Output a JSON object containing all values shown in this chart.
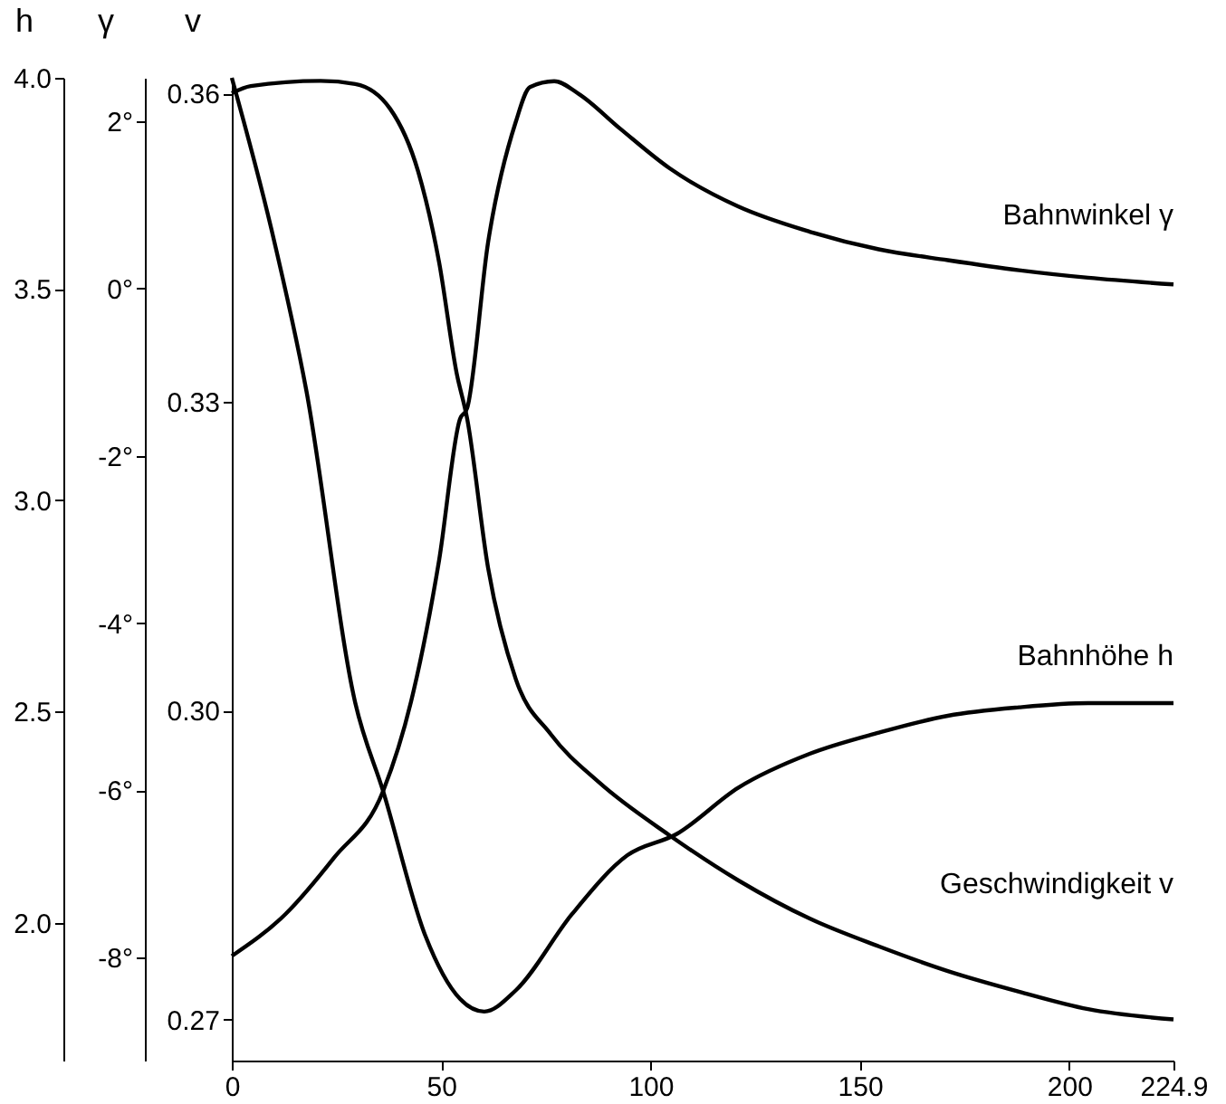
{
  "chart_data": {
    "type": "line",
    "xlim": [
      0,
      224.9
    ],
    "xticks": [
      0,
      50,
      100,
      150,
      200,
      {
        "value": 224.9,
        "label": "224.9"
      }
    ],
    "ylabel": "v",
    "ylim": [
      0.266,
      0.3615
    ],
    "yticks": [
      {
        "value": 0.27,
        "label": "0.27"
      },
      {
        "value": 0.3,
        "label": "0.30"
      },
      {
        "value": 0.33,
        "label": "0.33"
      },
      {
        "value": 0.36,
        "label": "0.36"
      }
    ],
    "y2label": "γ",
    "y2lim": [
      -9.23,
      2.52
    ],
    "y2ticks": [
      {
        "value": 2,
        "label": "2°"
      },
      {
        "value": 0,
        "label": "0°"
      },
      {
        "value": -2,
        "label": "-2°"
      },
      {
        "value": -4,
        "label": "-4°"
      },
      {
        "value": -6,
        "label": "-6°"
      },
      {
        "value": -8,
        "label": "-8°"
      }
    ],
    "y3label": "h",
    "y3lim": [
      1.674,
      4.0
    ],
    "y3ticks": [
      {
        "value": 4,
        "label": "4.0"
      },
      {
        "value": 3.5,
        "label": "3.5"
      },
      {
        "value": 3,
        "label": "3.0"
      },
      {
        "value": 2.5,
        "label": "2.5"
      },
      {
        "value": 2,
        "label": "2.0"
      }
    ],
    "grid": false,
    "marker": "none",
    "line_style": "solid",
    "series": [
      {
        "name": "Bahnwinkel γ",
        "axis": "y2",
        "color": "#000000",
        "x": [
          0,
          12.8,
          24.5,
          36.2,
          42.8,
          49.5,
          54.5,
          56.2,
          61.2,
          67.8,
          71.2,
          77,
          82.8,
          92.8,
          104.5,
          121,
          138,
          154.5,
          171,
          188,
          204.5,
          224.9
        ],
        "values": [
          -7.98,
          -7.48,
          -6.8,
          -6.0,
          -4.94,
          -3.25,
          -1.56,
          -1.43,
          0.55,
          1.99,
          2.41,
          2.48,
          2.33,
          1.91,
          1.44,
          0.98,
          0.68,
          0.47,
          0.34,
          0.22,
          0.13,
          0.05
        ]
      },
      {
        "name": "Bahnhöhe h",
        "axis": "y3",
        "color": "#000000",
        "x": [
          0,
          9.5,
          17.8,
          29.5,
          36.2,
          46.2,
          54.5,
          60.3,
          67.8,
          81.2,
          94.5,
          106.2,
          121,
          138,
          154.5,
          171,
          188,
          204.5,
          224.9
        ],
        "values": [
          4.0,
          3.64,
          3.26,
          2.52,
          2.31,
          1.97,
          1.82,
          1.79,
          1.84,
          2.02,
          2.16,
          2.21,
          2.32,
          2.4,
          2.45,
          2.49,
          2.51,
          2.52,
          2.52
        ]
      },
      {
        "name": "Geschwindigkeit v",
        "axis": "y",
        "color": "#000000",
        "x": [
          0,
          4.5,
          21.2,
          29.5,
          37.8,
          44.5,
          49.5,
          53.7,
          56.2,
          61.2,
          67.8,
          76.2,
          87.8,
          104.5,
          121,
          138,
          154.5,
          171,
          188,
          204.5,
          224.9
        ],
        "values": [
          0.36,
          0.3607,
          0.3612,
          0.3609,
          0.3585,
          0.3524,
          0.3436,
          0.3328,
          0.3284,
          0.3139,
          0.3031,
          0.2977,
          0.293,
          0.2879,
          0.2835,
          0.2798,
          0.2771,
          0.2747,
          0.2727,
          0.271,
          0.27
        ]
      }
    ]
  }
}
